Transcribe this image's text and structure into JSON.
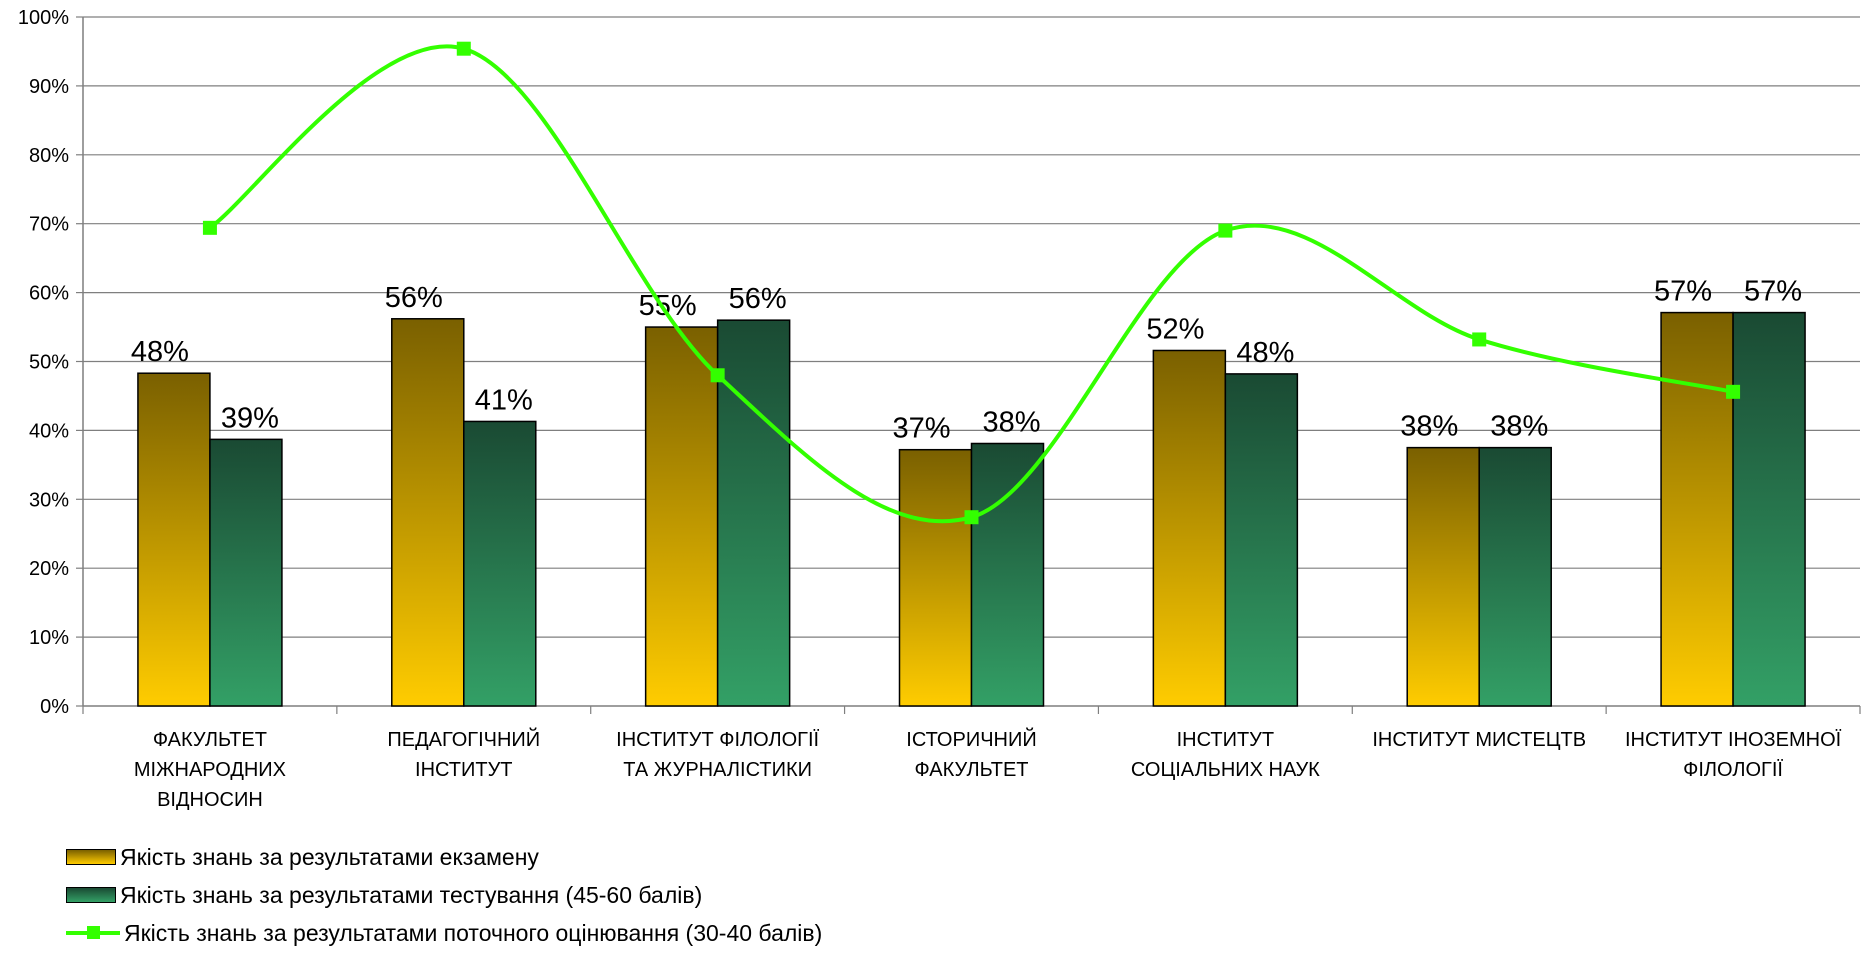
{
  "chart_data": {
    "type": "bar",
    "categories": [
      [
        "ФАКУЛЬТЕТ",
        "МІЖНАРОДНИХ",
        "ВІДНОСИН"
      ],
      [
        "ПЕДАГОГІЧНИЙ",
        "ІНСТИТУТ"
      ],
      [
        "ІНСТИТУТ ФІЛОЛОГІЇ",
        "ТА ЖУРНАЛІСТИКИ"
      ],
      [
        "ІСТОРИЧНИЙ",
        "ФАКУЛЬТЕТ"
      ],
      [
        "ІНСТИТУТ",
        "СОЦІАЛЬНИХ НАУК"
      ],
      [
        "ІНСТИТУТ МИСТЕЦТВ"
      ],
      [
        "ІНСТИТУТ ІНОЗЕМНОЇ",
        "ФІЛОЛОГІЇ"
      ]
    ],
    "series": [
      {
        "name": "Якість знань за результатами екзамену",
        "type": "bar",
        "values": [
          48.3,
          56.2,
          55.0,
          37.2,
          51.6,
          37.5,
          57.1
        ],
        "labels": [
          "48%",
          "56%",
          "55%",
          "37%",
          "52%",
          "38%",
          "57%"
        ],
        "color_top": "#7a6000",
        "color_bottom": "#ffcc00"
      },
      {
        "name": "Якість знань за результатами тестування (45-60 балів)",
        "type": "bar",
        "values": [
          38.7,
          41.3,
          56.0,
          38.1,
          48.2,
          37.5,
          57.1
        ],
        "labels": [
          "39%",
          "41%",
          "56%",
          "38%",
          "48%",
          "38%",
          "57%"
        ],
        "color_top": "#1a4a33",
        "color_bottom": "#33a066"
      },
      {
        "name": "Якість знань за результатами поточного оцінювання (30-40 балів)",
        "type": "line",
        "smooth": true,
        "values": [
          69.4,
          95.4,
          48.0,
          27.4,
          69.0,
          53.2,
          45.6
        ],
        "color": "#33ff00"
      }
    ],
    "y_ticks": [
      "0%",
      "10%",
      "20%",
      "30%",
      "40%",
      "50%",
      "60%",
      "70%",
      "80%",
      "90%",
      "100%"
    ],
    "ylim": [
      0,
      100
    ],
    "grid": true,
    "legend_position": "bottom-left"
  }
}
